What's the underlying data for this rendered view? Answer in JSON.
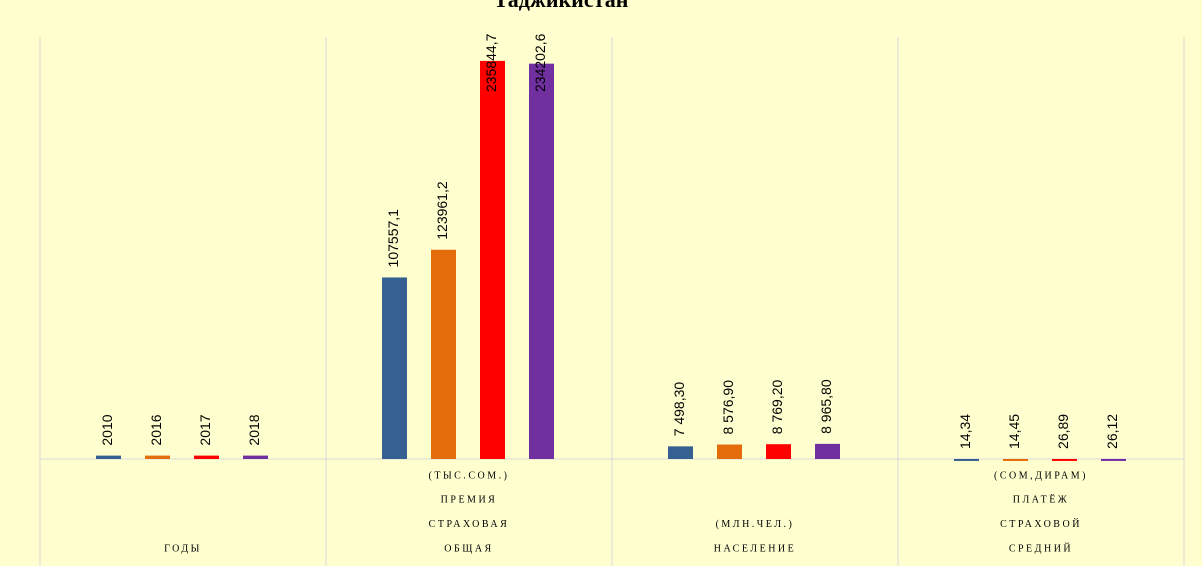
{
  "chart_data": {
    "type": "bar",
    "title": "Таджикистан",
    "categories": [
      [
        "ГОДЫ"
      ],
      [
        "(ТЫС.СОМ.)",
        "ПРЕМИЯ",
        "СТРАХОВАЯ",
        "ОБЩАЯ"
      ],
      [
        "(МЛН.ЧЕЛ.)",
        "НАСЕЛЕНИЕ"
      ],
      [
        "(СОМ,ДИРАМ)",
        "ПЛАТЁЖ",
        "СТРАХОВОЙ",
        "СРЕДНИЙ"
      ]
    ],
    "series": [
      {
        "color": "#376092",
        "values": [
          2010,
          107557.1,
          7498.3,
          14.34
        ],
        "value_labels": [
          "2010",
          "107557,1",
          "7 498,30",
          "14,34"
        ]
      },
      {
        "color": "#e46c0a",
        "values": [
          2016,
          123961.2,
          8576.9,
          14.45
        ],
        "value_labels": [
          "2016",
          "123961,2",
          "8 576,90",
          "14,45"
        ]
      },
      {
        "color": "#ff0000",
        "values": [
          2017,
          235844.7,
          8769.2,
          26.89
        ],
        "value_labels": [
          "2017",
          "235844,7",
          "8 769,20",
          "26,89"
        ]
      },
      {
        "color": "#7030a0",
        "values": [
          2018,
          234202.6,
          8965.8,
          26.12
        ],
        "value_labels": [
          "2018",
          "234202,6",
          "8 965,80",
          "26,12"
        ]
      }
    ],
    "ylim": [
      0,
      250000
    ]
  }
}
